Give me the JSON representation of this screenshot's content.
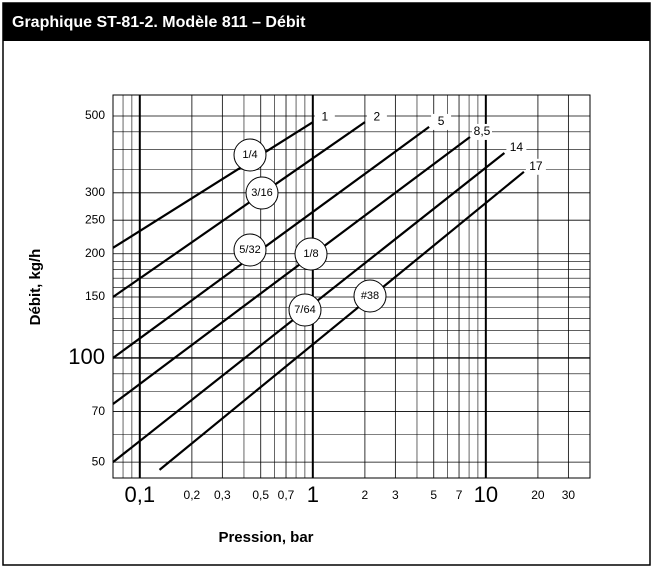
{
  "chart_data": {
    "type": "line",
    "title": "Graphique ST-81-2. Modèle 811 – Débit",
    "x_label": "Pression, bar",
    "y_label": "Débit, kg/h",
    "log_x": true,
    "log_y": true,
    "grid": true,
    "color": "#000000",
    "xlim": [
      0.07,
      40
    ],
    "ylim": [
      45,
      575
    ],
    "xticks": [
      {
        "value": 0.1,
        "label": "0,1"
      },
      {
        "value": 0.2,
        "label": "0,2"
      },
      {
        "value": 0.3,
        "label": "0,3"
      },
      {
        "value": 0.5,
        "label": "0,5"
      },
      {
        "value": 0.7,
        "label": "0,7"
      },
      1,
      2,
      3,
      5,
      7,
      10,
      20,
      30
    ],
    "x_minor_grid": [
      0.08,
      0.09,
      0.4,
      0.6,
      0.8,
      0.9,
      4,
      6,
      8,
      9
    ],
    "yticks": [
      50,
      70,
      100,
      150,
      200,
      250,
      300,
      500
    ],
    "y_minor_grid": [
      60,
      80,
      90,
      110,
      120,
      130,
      140,
      160,
      170,
      180,
      190,
      350,
      400,
      450
    ],
    "series": [
      {
        "name": "1",
        "x": [
          0.07,
          1.0
        ],
        "values": [
          208,
          480
        ]
      },
      {
        "name": "2",
        "x": [
          0.07,
          2.0
        ],
        "values": [
          150,
          480
        ]
      },
      {
        "name": "5",
        "x": [
          0.07,
          4.7
        ],
        "values": [
          100,
          465
        ]
      },
      {
        "name": "8,5",
        "x": [
          0.07,
          8.1
        ],
        "values": [
          73.6,
          435
        ]
      },
      {
        "name": "14",
        "x": [
          0.07,
          12.8
        ],
        "values": [
          50,
          391
        ]
      },
      {
        "name": "17",
        "x": [
          0.13,
          16.6
        ],
        "values": [
          47.5,
          345
        ]
      }
    ],
    "annotations": [
      "1/4",
      "3/16",
      "5/32",
      "1/8",
      "7/64",
      "#38"
    ]
  }
}
